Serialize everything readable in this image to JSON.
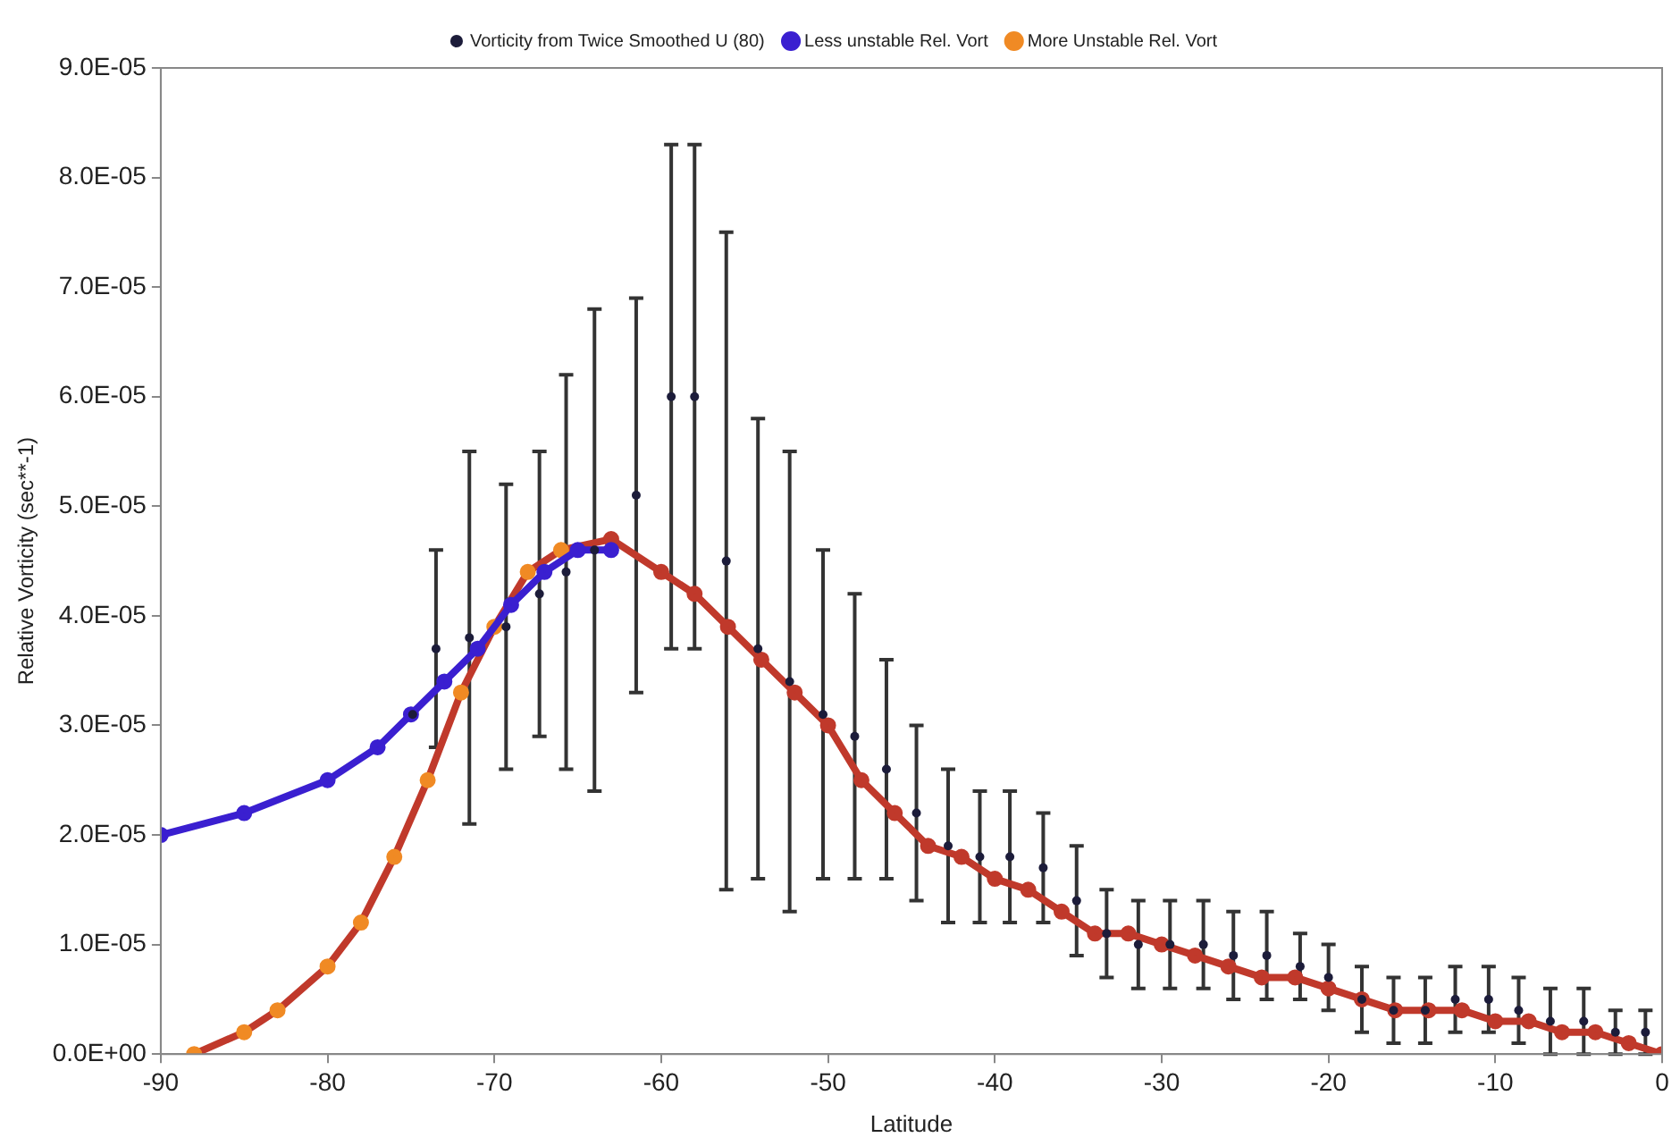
{
  "chart_data": {
    "type": "scatter",
    "xlabel": "Latitude",
    "ylabel": "Relative Vorticity (sec**-1)",
    "xlim": [
      -90,
      0
    ],
    "xticks": [
      -90,
      -80,
      -70,
      -60,
      -50,
      -40,
      -30,
      -20,
      -10,
      0
    ],
    "ylim": [
      0,
      9e-05
    ],
    "yticks": [
      {
        "value": 0,
        "label": "0.0E+00"
      },
      {
        "value": 1e-05,
        "label": "1.0E-05"
      },
      {
        "value": 2e-05,
        "label": "2.0E-05"
      },
      {
        "value": 3e-05,
        "label": "3.0E-05"
      },
      {
        "value": 4e-05,
        "label": "4.0E-05"
      },
      {
        "value": 5e-05,
        "label": "5.0E-05"
      },
      {
        "value": 6e-05,
        "label": "6.0E-05"
      },
      {
        "value": 7e-05,
        "label": "7.0E-05"
      },
      {
        "value": 8e-05,
        "label": "8.0E-05"
      },
      {
        "value": 9e-05,
        "label": "9.0E-05"
      }
    ],
    "grid": false,
    "legend": "top",
    "marker": "circle",
    "series": [
      {
        "name": "Vorticity from Twice Smoothed U (80)",
        "type": "scatter",
        "color": "#1c1c3a",
        "x": [
          -74.9,
          -73.5,
          -71.5,
          -69.3,
          -67.3,
          -65.7,
          -64.0,
          -61.5,
          -59.4,
          -58.0,
          -56.1,
          -54.2,
          -52.3,
          -50.3,
          -48.4,
          -46.5,
          -44.7,
          -42.8,
          -40.9,
          -39.1,
          -37.1,
          -35.1,
          -33.3,
          -31.4,
          -29.5,
          -27.5,
          -25.7,
          -23.7,
          -21.7,
          -20.0,
          -18.0,
          -16.1,
          -14.2,
          -12.4,
          -10.4,
          -8.6,
          -6.7,
          -4.7,
          -2.8,
          -1.0
        ],
        "values": [
          3.1e-05,
          3.7e-05,
          3.8e-05,
          3.9e-05,
          4.2e-05,
          4.4e-05,
          4.6e-05,
          5.1e-05,
          6e-05,
          6e-05,
          4.5e-05,
          3.7e-05,
          3.4e-05,
          3.1e-05,
          2.9e-05,
          2.6e-05,
          2.2e-05,
          1.9e-05,
          1.8e-05,
          1.8e-05,
          1.7e-05,
          1.4e-05,
          1.1e-05,
          1e-05,
          1e-05,
          1e-05,
          9e-06,
          9e-06,
          8e-06,
          7e-06,
          5e-06,
          4e-06,
          4e-06,
          5e-06,
          5e-06,
          4e-06,
          3e-06,
          3e-06,
          2e-06,
          2e-06
        ],
        "errors": [
          null,
          9e-06,
          1.7e-05,
          1.3e-05,
          1.3e-05,
          1.8e-05,
          2.2e-05,
          1.8e-05,
          2.3e-05,
          2.3e-05,
          3e-05,
          2.1e-05,
          2.1e-05,
          1.5e-05,
          1.3e-05,
          1e-05,
          8e-06,
          7e-06,
          6e-06,
          6e-06,
          5e-06,
          5e-06,
          4e-06,
          4e-06,
          4e-06,
          4e-06,
          4e-06,
          4e-06,
          3e-06,
          3e-06,
          3e-06,
          3e-06,
          3e-06,
          3e-06,
          3e-06,
          3e-06,
          3e-06,
          3e-06,
          2e-06,
          2e-06
        ]
      },
      {
        "name": "Less unstable Rel. Vort",
        "type": "line",
        "color": "#3a1fd0",
        "x": [
          -90,
          -85,
          -80,
          -77,
          -75,
          -73,
          -71,
          -69,
          -67,
          -65,
          -63
        ],
        "values": [
          2e-05,
          2.2e-05,
          2.5e-05,
          2.8e-05,
          3.1e-05,
          3.4e-05,
          3.7e-05,
          4.1e-05,
          4.4e-05,
          4.6e-05,
          4.6e-05
        ]
      },
      {
        "name": "More Unstable Rel. Vort",
        "type": "line",
        "color": "#c0392b",
        "x": [
          -88,
          -85,
          -83,
          -80,
          -78,
          -76,
          -74,
          -72,
          -70,
          -68,
          -66,
          -63,
          -60,
          -58,
          -56,
          -54,
          -52,
          -50,
          -48,
          -46,
          -44,
          -42,
          -40,
          -38,
          -36,
          -34,
          -32,
          -30,
          -28,
          -26,
          -24,
          -22,
          -20,
          -18,
          -16,
          -14,
          -12,
          -10,
          -8,
          -6,
          -4,
          -2,
          0
        ],
        "values": [
          0.0,
          2e-06,
          4e-06,
          8e-06,
          1.2e-05,
          1.8e-05,
          2.5e-05,
          3.3e-05,
          3.9e-05,
          4.4e-05,
          4.6e-05,
          4.7e-05,
          4.4e-05,
          4.2e-05,
          3.9e-05,
          3.6e-05,
          3.3e-05,
          3e-05,
          2.5e-05,
          2.2e-05,
          1.9e-05,
          1.8e-05,
          1.6e-05,
          1.5e-05,
          1.3e-05,
          1.1e-05,
          1.1e-05,
          1e-05,
          9e-06,
          8e-06,
          7e-06,
          7e-06,
          6e-06,
          5e-06,
          4e-06,
          4e-06,
          4e-06,
          3e-06,
          3e-06,
          2e-06,
          2e-06,
          1e-06,
          0.0
        ],
        "colors": [
          "#f08a24",
          "#f08a24",
          "#f08a24",
          "#f08a24",
          "#f08a24",
          "#f08a24",
          "#f08a24",
          "#f08a24",
          "#f08a24",
          "#f08a24",
          "#f08a24",
          "#c0392b",
          "#c0392b",
          "#c0392b",
          "#c0392b",
          "#c0392b",
          "#c0392b",
          "#c0392b",
          "#c0392b",
          "#c0392b",
          "#c0392b",
          "#c0392b",
          "#c0392b",
          "#c0392b",
          "#c0392b",
          "#c0392b",
          "#c0392b",
          "#c0392b",
          "#c0392b",
          "#c0392b",
          "#c0392b",
          "#c0392b",
          "#c0392b",
          "#c0392b",
          "#c0392b",
          "#c0392b",
          "#c0392b",
          "#c0392b",
          "#c0392b",
          "#c0392b",
          "#c0392b",
          "#c0392b",
          "#c0392b"
        ]
      }
    ]
  }
}
